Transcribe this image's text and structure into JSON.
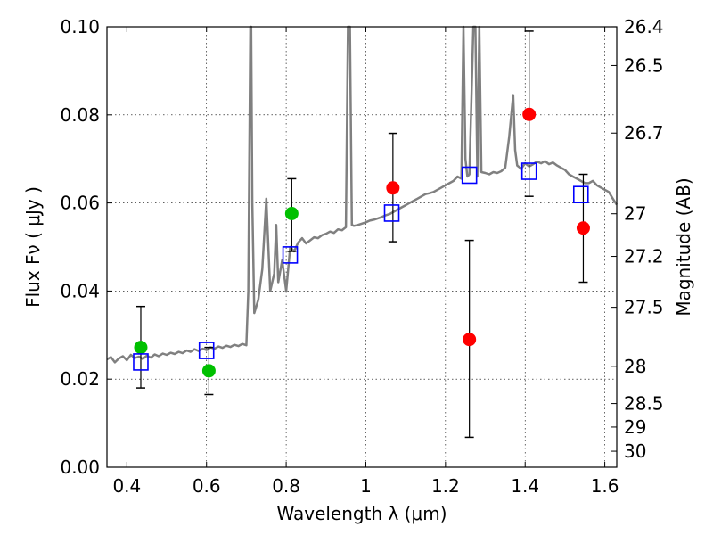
{
  "chart_data": {
    "type": "scatter",
    "xlabel": "Wavelength  λ (μm)",
    "ylabel": "Flux  Fν ( μJy )",
    "ylabel_right": "Magnitude (AB)",
    "xlim": [
      0.35,
      1.63
    ],
    "ylim": [
      0.0,
      0.1
    ],
    "grid": true,
    "x_ticks": [
      {
        "value": 0.4,
        "label": "0.4"
      },
      {
        "value": 0.6,
        "label": "0.6"
      },
      {
        "value": 0.8,
        "label": "0.8"
      },
      {
        "value": 1.0,
        "label": "1"
      },
      {
        "value": 1.2,
        "label": "1.2"
      },
      {
        "value": 1.4,
        "label": "1.4"
      },
      {
        "value": 1.6,
        "label": "1.6"
      }
    ],
    "y_ticks": [
      {
        "value": 0.0,
        "label": "0.00"
      },
      {
        "value": 0.02,
        "label": "0.02"
      },
      {
        "value": 0.04,
        "label": "0.04"
      },
      {
        "value": 0.06,
        "label": "0.06"
      },
      {
        "value": 0.08,
        "label": "0.08"
      },
      {
        "value": 0.1,
        "label": "0.10"
      }
    ],
    "mag_ticks": [
      {
        "value": 26.4,
        "label": "26.4"
      },
      {
        "value": 26.5,
        "label": "26.5"
      },
      {
        "value": 26.7,
        "label": "26.7"
      },
      {
        "value": 27.0,
        "label": "27"
      },
      {
        "value": 27.2,
        "label": "27.2"
      },
      {
        "value": 27.5,
        "label": "27.5"
      },
      {
        "value": 28.0,
        "label": "28"
      },
      {
        "value": 28.5,
        "label": "28.5"
      },
      {
        "value": 29.0,
        "label": "29"
      },
      {
        "value": 30.0,
        "label": "30"
      }
    ],
    "series": [
      {
        "name": "model-spectrum",
        "kind": "line",
        "color": "#808080",
        "x": [
          0.35,
          0.36,
          0.37,
          0.38,
          0.39,
          0.4,
          0.41,
          0.42,
          0.43,
          0.44,
          0.45,
          0.46,
          0.47,
          0.48,
          0.49,
          0.5,
          0.51,
          0.52,
          0.53,
          0.54,
          0.55,
          0.56,
          0.57,
          0.58,
          0.59,
          0.6,
          0.61,
          0.62,
          0.63,
          0.64,
          0.65,
          0.66,
          0.67,
          0.68,
          0.69,
          0.7,
          0.705,
          0.71,
          0.712,
          0.715,
          0.72,
          0.73,
          0.74,
          0.75,
          0.76,
          0.77,
          0.775,
          0.78,
          0.79,
          0.8,
          0.81,
          0.82,
          0.83,
          0.84,
          0.85,
          0.86,
          0.87,
          0.88,
          0.89,
          0.9,
          0.91,
          0.92,
          0.93,
          0.94,
          0.95,
          0.955,
          0.96,
          0.965,
          0.97,
          0.98,
          0.99,
          1.0,
          1.01,
          1.02,
          1.03,
          1.04,
          1.05,
          1.06,
          1.07,
          1.08,
          1.09,
          1.1,
          1.11,
          1.12,
          1.13,
          1.14,
          1.15,
          1.16,
          1.17,
          1.18,
          1.19,
          1.2,
          1.21,
          1.22,
          1.23,
          1.24,
          1.245,
          1.25,
          1.255,
          1.26,
          1.27,
          1.275,
          1.28,
          1.285,
          1.29,
          1.3,
          1.31,
          1.32,
          1.33,
          1.34,
          1.35,
          1.36,
          1.37,
          1.375,
          1.38,
          1.39,
          1.4,
          1.41,
          1.42,
          1.43,
          1.44,
          1.45,
          1.46,
          1.47,
          1.48,
          1.49,
          1.5,
          1.51,
          1.52,
          1.53,
          1.54,
          1.55,
          1.56,
          1.57,
          1.58,
          1.59,
          1.6,
          1.61,
          1.62,
          1.63
        ],
        "y": [
          0.0245,
          0.025,
          0.0238,
          0.0247,
          0.0252,
          0.0243,
          0.0255,
          0.0248,
          0.0251,
          0.0246,
          0.0253,
          0.0249,
          0.0256,
          0.0252,
          0.0258,
          0.0255,
          0.026,
          0.0257,
          0.0262,
          0.0259,
          0.0265,
          0.0262,
          0.0268,
          0.0264,
          0.0269,
          0.0266,
          0.0272,
          0.0269,
          0.0274,
          0.0271,
          0.0276,
          0.0273,
          0.0278,
          0.0275,
          0.028,
          0.0277,
          0.04,
          0.1,
          0.1,
          0.06,
          0.035,
          0.038,
          0.045,
          0.061,
          0.04,
          0.044,
          0.055,
          0.042,
          0.047,
          0.04,
          0.05,
          0.049,
          0.051,
          0.052,
          0.0508,
          0.0515,
          0.0522,
          0.052,
          0.0527,
          0.053,
          0.0535,
          0.0532,
          0.054,
          0.0538,
          0.0545,
          0.1,
          0.1,
          0.055,
          0.0548,
          0.055,
          0.0553,
          0.0556,
          0.056,
          0.0562,
          0.0565,
          0.0568,
          0.0572,
          0.0575,
          0.058,
          0.0585,
          0.059,
          0.0595,
          0.06,
          0.0605,
          0.061,
          0.0615,
          0.062,
          0.0622,
          0.0625,
          0.063,
          0.0635,
          0.064,
          0.0645,
          0.065,
          0.066,
          0.0655,
          0.1,
          0.07,
          0.066,
          0.0665,
          0.1,
          0.1,
          0.066,
          0.1,
          0.067,
          0.0668,
          0.0665,
          0.067,
          0.0668,
          0.0672,
          0.068,
          0.075,
          0.0845,
          0.072,
          0.0685,
          0.0678,
          0.069,
          0.0683,
          0.0688,
          0.0694,
          0.069,
          0.0695,
          0.0688,
          0.0692,
          0.0685,
          0.068,
          0.0675,
          0.0665,
          0.066,
          0.0655,
          0.065,
          0.0645,
          0.0645,
          0.065,
          0.064,
          0.0635,
          0.063,
          0.0625,
          0.061,
          0.0596
        ]
      },
      {
        "name": "green-points",
        "kind": "points",
        "marker": "circle",
        "color": "#00c000",
        "points": [
          {
            "x": 0.435,
            "y": 0.0272,
            "err_low": 0.018,
            "err_high": 0.0365
          },
          {
            "x": 0.606,
            "y": 0.0219,
            "err_low": 0.0165,
            "err_high": 0.0272
          },
          {
            "x": 0.814,
            "y": 0.0576,
            "err_low": 0.049,
            "err_high": 0.0655
          }
        ]
      },
      {
        "name": "red-points",
        "kind": "points",
        "marker": "circle",
        "color": "#ff0000",
        "points": [
          {
            "x": 1.068,
            "y": 0.0634,
            "err_low": 0.0512,
            "err_high": 0.0758
          },
          {
            "x": 1.26,
            "y": 0.029,
            "err_low": 0.0068,
            "err_high": 0.0515
          },
          {
            "x": 1.41,
            "y": 0.0801,
            "err_low": 0.0615,
            "err_high": 0.099
          },
          {
            "x": 1.546,
            "y": 0.0543,
            "err_low": 0.042,
            "err_high": 0.0665
          }
        ]
      },
      {
        "name": "model-photometry",
        "kind": "points",
        "marker": "square-open",
        "color": "#0000ff",
        "points": [
          {
            "x": 0.435,
            "y": 0.0239
          },
          {
            "x": 0.6,
            "y": 0.0265
          },
          {
            "x": 0.81,
            "y": 0.0482
          },
          {
            "x": 1.065,
            "y": 0.0577
          },
          {
            "x": 1.26,
            "y": 0.0663
          },
          {
            "x": 1.41,
            "y": 0.0672
          },
          {
            "x": 1.54,
            "y": 0.0619
          }
        ]
      }
    ]
  }
}
